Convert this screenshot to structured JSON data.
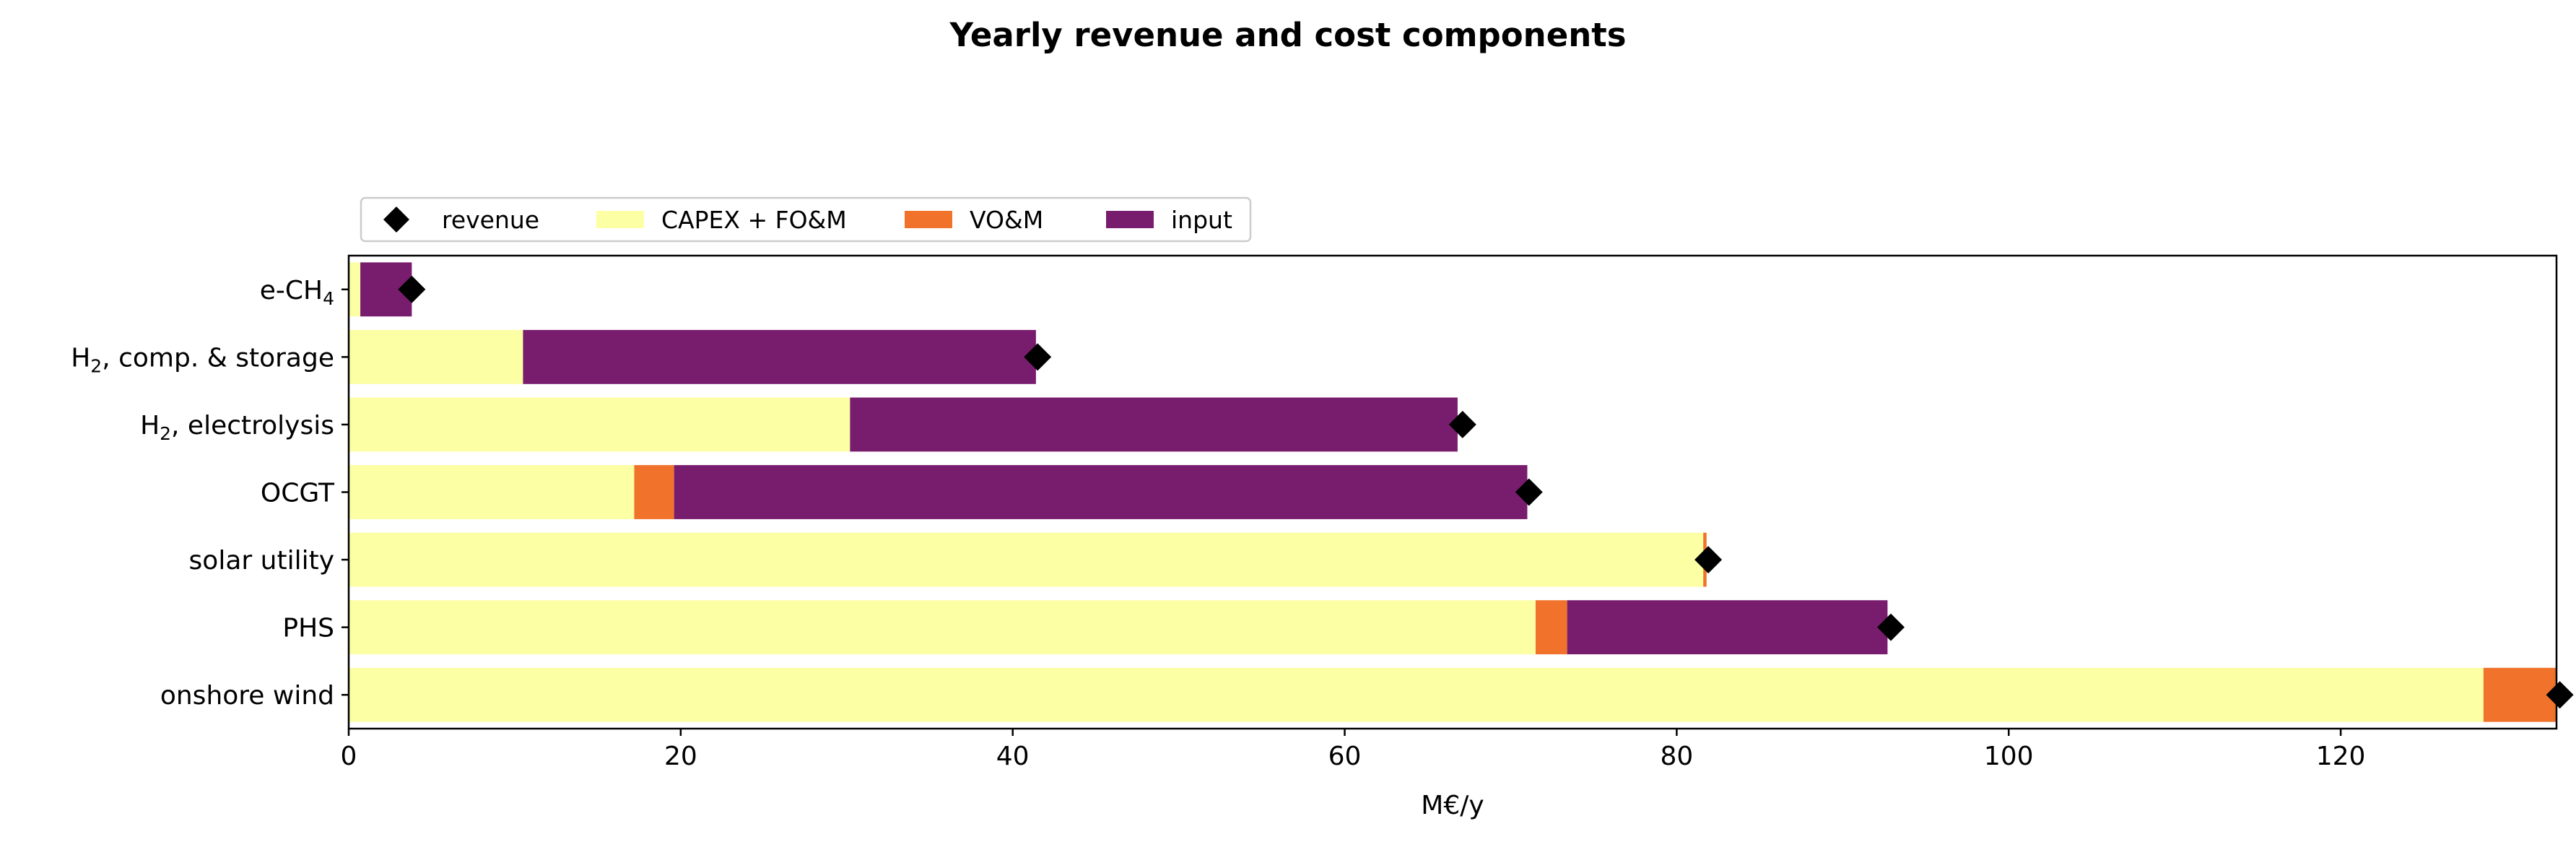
{
  "chart_data": {
    "type": "bar",
    "orientation": "horizontal",
    "stacked": true,
    "title": "Yearly revenue and cost components",
    "xlabel": "M€/y",
    "ylabel": "",
    "xlim": [
      0,
      133
    ],
    "xticks": [
      0,
      20,
      40,
      60,
      80,
      100,
      120
    ],
    "grid": false,
    "legend_position": "top-left, above plot",
    "legend": [
      {
        "label": "revenue",
        "marker": "diamond",
        "color": "#000000"
      },
      {
        "label": "CAPEX + FO&M",
        "marker": "rect",
        "color": "#fcffa4"
      },
      {
        "label": "VO&M",
        "marker": "rect",
        "color": "#f1722a"
      },
      {
        "label": "input",
        "marker": "rect",
        "color": "#781c6d"
      }
    ],
    "categories": [
      {
        "main": "e-CH",
        "sub": "4",
        "rest": ""
      },
      {
        "main": "H",
        "sub": "2",
        "rest": ", comp. & storage"
      },
      {
        "main": "H",
        "sub": "2",
        "rest": ", electrolysis"
      },
      {
        "main": "OCGT",
        "sub": "",
        "rest": ""
      },
      {
        "main": "solar utility",
        "sub": "",
        "rest": ""
      },
      {
        "main": "PHS",
        "sub": "",
        "rest": ""
      },
      {
        "main": "onshore wind",
        "sub": "",
        "rest": ""
      }
    ],
    "series": [
      {
        "name": "CAPEX + FO&M",
        "color": "#fcffa4",
        "values": [
          0.7,
          10.5,
          30.2,
          17.2,
          81.6,
          71.5,
          128.6
        ]
      },
      {
        "name": "VO&M",
        "color": "#f1722a",
        "values": [
          0.0,
          0.0,
          0.0,
          2.4,
          0.2,
          1.9,
          4.6
        ]
      },
      {
        "name": "input",
        "color": "#781c6d",
        "values": [
          3.1,
          30.9,
          36.6,
          51.4,
          0.0,
          19.3,
          0.0
        ]
      }
    ],
    "revenue": {
      "name": "revenue",
      "color": "#000000",
      "values": [
        3.8,
        41.5,
        67.1,
        71.1,
        81.9,
        92.9,
        133.2
      ]
    }
  }
}
